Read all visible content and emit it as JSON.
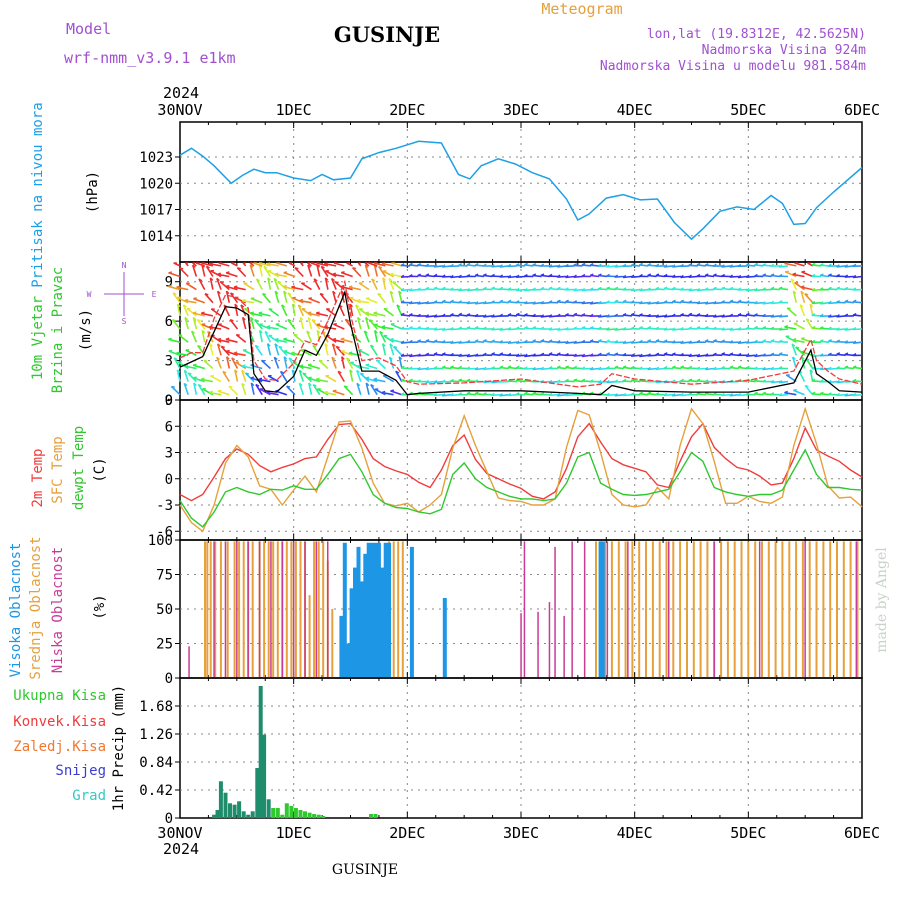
{
  "header": {
    "model_label": "Model",
    "model_name": "wrf-nmm_v3.9.1 e1km",
    "station": "GUSINJE",
    "meteogram_label": "Meteogram",
    "lonlat": "lon,lat (19.8312E, 42.5625N)",
    "elevation": "Nadmorska Visina 924m",
    "model_elevation": "Nadmorska Visina u modelu 981.584m",
    "year_top": "2024",
    "year_bottom": "2024",
    "footer_station": "GUSINJE",
    "credit": "made by Angel"
  },
  "time_axis": {
    "labels": [
      "30NOV",
      "1DEC",
      "2DEC",
      "3DEC",
      "4DEC",
      "5DEC",
      "6DEC"
    ],
    "days": [
      0,
      1,
      2,
      3,
      4,
      5,
      6
    ]
  },
  "colors": {
    "pressure": "#1ea0e6",
    "temp2m": "#f03c3c",
    "sfc": "#e6a03c",
    "dewpt": "#2fc82f",
    "high_cloud": "#1e96e6",
    "mid_cloud": "#e6a03c",
    "low_cloud": "#c83c96",
    "precip_total": "#2fc82f",
    "precip_conv": "#f03c3c",
    "precip_strat": "#f07832",
    "snow": "#3c3cd2",
    "hail": "#32c8c8",
    "violet_text": "#a050d0",
    "orange_text": "#e6a03c"
  },
  "chart_data": [
    {
      "type": "line",
      "panel": "pressure",
      "ylabel_series": "Pritisak na nivou mora",
      "ylabel_unit": "(hPa)",
      "ylim": [
        1011,
        1027
      ],
      "yticks": [
        "1014",
        "1017",
        "1020",
        "1023"
      ],
      "grid": true,
      "x": [
        0,
        0.1,
        0.2,
        0.3,
        0.45,
        0.55,
        0.65,
        0.75,
        0.85,
        1.0,
        1.15,
        1.25,
        1.35,
        1.5,
        1.6,
        1.75,
        1.9,
        2.1,
        2.3,
        2.45,
        2.55,
        2.65,
        2.8,
        2.95,
        3.1,
        3.25,
        3.4,
        3.5,
        3.6,
        3.75,
        3.9,
        4.05,
        4.2,
        4.35,
        4.5,
        4.6,
        4.75,
        4.9,
        5.05,
        5.2,
        5.3,
        5.4,
        5.5,
        5.6,
        5.75,
        6.0
      ],
      "y": [
        1023.2,
        1024.0,
        1023.1,
        1022.0,
        1020.0,
        1020.9,
        1021.6,
        1021.2,
        1021.2,
        1020.6,
        1020.3,
        1021.0,
        1020.4,
        1020.6,
        1022.8,
        1023.5,
        1024.0,
        1024.8,
        1024.6,
        1021.0,
        1020.5,
        1022.0,
        1022.8,
        1022.2,
        1021.2,
        1020.5,
        1018.2,
        1015.8,
        1016.5,
        1018.3,
        1018.7,
        1018.1,
        1018.2,
        1015.5,
        1013.6,
        1014.8,
        1016.8,
        1017.3,
        1017.0,
        1018.6,
        1017.7,
        1015.3,
        1015.4,
        1017.2,
        1019.0,
        1021.8
      ]
    },
    {
      "type": "line",
      "panel": "wind",
      "ylabel_series": "10m Vjetar",
      "ylabel_series2": "Brzina i Pravac",
      "ylabel_unit": "(m/s)",
      "ylim": [
        0,
        10.5
      ],
      "yticks": [
        "0",
        "3",
        "6",
        "9"
      ],
      "grid": true,
      "compass": {
        "north": "N",
        "west": "W",
        "east": "E",
        "south": "S"
      },
      "series": [
        {
          "name": "speed",
          "x": [
            0,
            0.1,
            0.2,
            0.3,
            0.4,
            0.5,
            0.6,
            0.65,
            0.75,
            0.85,
            1.0,
            1.1,
            1.2,
            1.3,
            1.45,
            1.5,
            1.6,
            1.75,
            1.9,
            2.0,
            2.1,
            2.5,
            3.0,
            3.5,
            3.7,
            3.8,
            4.0,
            4.5,
            5.0,
            5.4,
            5.55,
            5.6,
            5.7,
            5.8,
            6.0
          ],
          "y": [
            2.5,
            2.9,
            3.3,
            5.2,
            7.1,
            7.0,
            6.5,
            2.0,
            0.7,
            0.6,
            1.8,
            3.8,
            3.4,
            5.0,
            8.2,
            5.8,
            2.2,
            2.2,
            1.5,
            0.4,
            0.5,
            0.7,
            0.7,
            0.5,
            0.4,
            1.1,
            0.7,
            0.6,
            0.6,
            1.3,
            3.8,
            2.0,
            1.4,
            0.7,
            0.6
          ]
        },
        {
          "name": "gust",
          "x": [
            0,
            0.1,
            0.2,
            0.3,
            0.4,
            0.5,
            0.6,
            0.65,
            0.75,
            0.85,
            1.0,
            1.1,
            1.2,
            1.3,
            1.45,
            1.5,
            1.6,
            1.75,
            1.9,
            2.0,
            2.1,
            2.5,
            3.0,
            3.5,
            3.7,
            3.8,
            4.0,
            4.5,
            5.0,
            5.4,
            5.55,
            5.6,
            5.7,
            5.8,
            6.0
          ],
          "y": [
            3.2,
            3.6,
            3.6,
            6.2,
            8.0,
            7.8,
            7.0,
            3.0,
            1.6,
            1.5,
            2.8,
            4.5,
            4.2,
            6.0,
            9.0,
            6.5,
            3.0,
            3.2,
            2.6,
            1.4,
            1.2,
            1.3,
            1.6,
            1.0,
            1.2,
            2.0,
            1.6,
            1.2,
            1.5,
            2.2,
            4.6,
            3.0,
            2.2,
            1.6,
            1.2
          ]
        }
      ]
    },
    {
      "type": "line",
      "panel": "temperature",
      "ylabel_series": [
        "2m Temp",
        "SFC Temp",
        "dewpt Temp"
      ],
      "ylabel_unit": "(C)",
      "ylim": [
        -7,
        9
      ],
      "yticks": [
        "-6",
        "-3",
        "0",
        "3",
        "6",
        "9"
      ],
      "grid": true,
      "x": [
        0,
        0.1,
        0.2,
        0.3,
        0.4,
        0.5,
        0.6,
        0.7,
        0.8,
        0.9,
        1.0,
        1.1,
        1.2,
        1.3,
        1.4,
        1.5,
        1.6,
        1.7,
        1.8,
        1.9,
        2.0,
        2.1,
        2.2,
        2.3,
        2.4,
        2.5,
        2.6,
        2.7,
        2.8,
        2.9,
        3.0,
        3.1,
        3.2,
        3.3,
        3.4,
        3.5,
        3.6,
        3.7,
        3.8,
        3.9,
        4.0,
        4.1,
        4.2,
        4.3,
        4.4,
        4.5,
        4.6,
        4.7,
        4.8,
        4.9,
        5.0,
        5.1,
        5.2,
        5.3,
        5.4,
        5.5,
        5.6,
        5.7,
        5.8,
        5.9,
        6.0
      ],
      "series": [
        {
          "name": "2m Temp",
          "y": [
            -1.8,
            -2.5,
            -1.8,
            0.2,
            2.3,
            3.4,
            2.8,
            1.5,
            0.8,
            1.3,
            1.7,
            2.3,
            2.5,
            4.5,
            6.2,
            6.3,
            4.5,
            2.3,
            1.4,
            0.9,
            0.5,
            -0.4,
            -1.0,
            1.0,
            3.8,
            5.0,
            2.2,
            0.6,
            0.0,
            -0.6,
            -1.1,
            -2.0,
            -2.3,
            -1.5,
            1.2,
            4.8,
            6.3,
            4.2,
            2.3,
            1.6,
            1.2,
            0.8,
            -0.7,
            -1.0,
            2.0,
            4.8,
            6.3,
            3.6,
            2.3,
            1.3,
            1.0,
            0.3,
            -0.7,
            -0.5,
            2.3,
            5.8,
            3.3,
            2.6,
            2.0,
            1.0,
            0.2
          ]
        },
        {
          "name": "SFC Temp",
          "y": [
            -3.0,
            -5.0,
            -6.0,
            -3.0,
            1.8,
            3.8,
            2.5,
            -0.8,
            -1.2,
            -3.0,
            -1.3,
            0.3,
            -1.5,
            2.5,
            6.5,
            6.6,
            3.5,
            -0.5,
            -2.8,
            -3.1,
            -2.8,
            -3.8,
            -3.0,
            -1.8,
            3.5,
            7.2,
            3.8,
            0.8,
            -2.2,
            -2.5,
            -2.6,
            -3.0,
            -3.0,
            -2.3,
            3.6,
            7.8,
            7.3,
            3.0,
            -1.8,
            -3.0,
            -3.2,
            -3.0,
            -1.0,
            -2.3,
            3.8,
            8.0,
            6.3,
            2.0,
            -2.8,
            -2.8,
            -2.0,
            -2.6,
            -2.8,
            -2.1,
            3.8,
            8.0,
            4.0,
            -0.8,
            -2.2,
            -2.1,
            -3.2
          ]
        },
        {
          "name": "dewpt Temp",
          "y": [
            -2.5,
            -4.5,
            -5.5,
            -3.8,
            -1.5,
            -1.0,
            -1.5,
            -1.8,
            -1.2,
            -1.3,
            -0.8,
            -1.2,
            -1.2,
            0.5,
            2.3,
            2.8,
            0.8,
            -1.8,
            -2.8,
            -3.3,
            -3.4,
            -3.8,
            -4.0,
            -3.5,
            0.5,
            1.8,
            0.0,
            -1.0,
            -1.5,
            -2.0,
            -2.3,
            -2.3,
            -2.5,
            -2.3,
            -0.5,
            2.5,
            3.0,
            -0.5,
            -1.2,
            -1.8,
            -1.9,
            -1.8,
            -1.5,
            -1.2,
            0.8,
            3.0,
            2.0,
            -1.0,
            -1.5,
            -1.8,
            -2.0,
            -1.8,
            -1.8,
            -1.3,
            1.0,
            3.3,
            0.5,
            -1.0,
            -1.0,
            -1.2,
            -1.3
          ]
        }
      ]
    },
    {
      "type": "bar",
      "panel": "clouds",
      "ylabel_series": [
        "Visoka Oblacnost",
        "Srednja Oblacnost",
        "Niska Oblacnost"
      ],
      "ylabel_unit": "(%)",
      "ylim": [
        0,
        100
      ],
      "yticks": [
        "0",
        "25",
        "50",
        "75",
        "100"
      ],
      "grid": true,
      "series": [
        {
          "name": "Visoka Oblacnost",
          "x": [
            1.42,
            1.45,
            1.48,
            1.51,
            1.54,
            1.57,
            1.6,
            1.63,
            1.66,
            1.69,
            1.72,
            1.75,
            1.78,
            1.81,
            1.84,
            2.04,
            2.33,
            3.7,
            3.72
          ],
          "y": [
            45,
            98,
            25,
            65,
            80,
            95,
            70,
            90,
            98,
            98,
            98,
            98,
            80,
            98,
            98,
            95,
            58,
            99,
            99
          ]
        },
        {
          "name": "Srednja Oblacnost",
          "x": [
            0.22,
            0.24,
            0.27,
            0.31,
            0.36,
            0.42,
            0.48,
            0.52,
            0.56,
            0.6,
            0.64,
            0.7,
            0.74,
            0.78,
            0.82,
            0.86,
            0.9,
            0.94,
            0.98,
            1.02,
            1.06,
            1.1,
            1.14,
            1.18,
            1.22,
            1.26,
            1.3,
            1.34,
            1.84,
            1.88,
            1.92,
            1.96,
            3.66,
            3.7,
            3.74,
            3.8,
            3.86,
            3.92,
            3.98,
            4.04,
            4.1,
            4.16,
            4.22,
            4.28,
            4.34,
            4.4,
            4.46,
            4.52,
            4.58,
            4.64,
            4.7,
            4.76,
            4.82,
            4.88,
            4.94,
            5.0,
            5.06,
            5.12,
            5.18,
            5.24,
            5.3,
            5.36,
            5.42,
            5.48,
            5.54,
            5.6,
            5.66,
            5.72,
            5.78,
            5.84,
            5.9,
            5.96
          ],
          "y": [
            99,
            99,
            99,
            99,
            99,
            99,
            99,
            99,
            99,
            99,
            99,
            99,
            99,
            99,
            99,
            99,
            99,
            99,
            99,
            99,
            99,
            99,
            60,
            99,
            99,
            99,
            85,
            50,
            99,
            99,
            99,
            99,
            99,
            99,
            99,
            99,
            99,
            99,
            99,
            99,
            99,
            99,
            99,
            99,
            99,
            99,
            99,
            99,
            99,
            99,
            99,
            99,
            99,
            99,
            99,
            99,
            99,
            99,
            99,
            99,
            99,
            99,
            99,
            99,
            99,
            99,
            99,
            99,
            99,
            99,
            99,
            99
          ]
        },
        {
          "name": "Niska Oblacnost",
          "x": [
            0.08,
            0.3,
            0.4,
            0.5,
            0.6,
            0.7,
            0.8,
            0.9,
            1.0,
            1.1,
            1.2,
            1.3,
            3.0,
            3.03,
            3.15,
            3.25,
            3.3,
            3.38,
            3.45,
            3.56,
            3.76,
            3.94,
            4.3,
            4.7,
            5.1,
            5.5,
            5.95
          ],
          "y": [
            23,
            99,
            99,
            99,
            99,
            99,
            99,
            99,
            99,
            99,
            99,
            99,
            47,
            99,
            48,
            55,
            95,
            45,
            99,
            99,
            99,
            99,
            99,
            99,
            99,
            99,
            99
          ]
        }
      ]
    },
    {
      "type": "bar",
      "panel": "precipitation",
      "ylabel_series": [
        "Ukupna Kisa",
        "Konvek.Kisa",
        "Zaledj.Kisa",
        "Snijeg",
        "Grad"
      ],
      "ylabel_unit": "1hr Precip (mm)",
      "ylim": [
        0,
        2.1
      ],
      "yticks": [
        "0",
        "0.42",
        "0.84",
        "1.26",
        "1.68"
      ],
      "grid": true,
      "series": [
        {
          "name": "Ukupna Kisa",
          "x": [
            0.3,
            0.33,
            0.36,
            0.4,
            0.44,
            0.48,
            0.52,
            0.56,
            0.6,
            0.64,
            0.68,
            0.71,
            0.74,
            0.78,
            0.82,
            0.86,
            0.9,
            0.94,
            0.98,
            1.02,
            1.06,
            1.1,
            1.14,
            1.18,
            1.22,
            1.26,
            1.68,
            1.72
          ],
          "y": [
            0.05,
            0.12,
            0.55,
            0.38,
            0.22,
            0.2,
            0.25,
            0.1,
            0.05,
            0.1,
            0.75,
            1.98,
            1.25,
            0.28,
            0.15,
            0.15,
            0.05,
            0.22,
            0.18,
            0.15,
            0.12,
            0.1,
            0.08,
            0.06,
            0.05,
            0.03,
            0.06,
            0.06
          ]
        }
      ]
    }
  ]
}
